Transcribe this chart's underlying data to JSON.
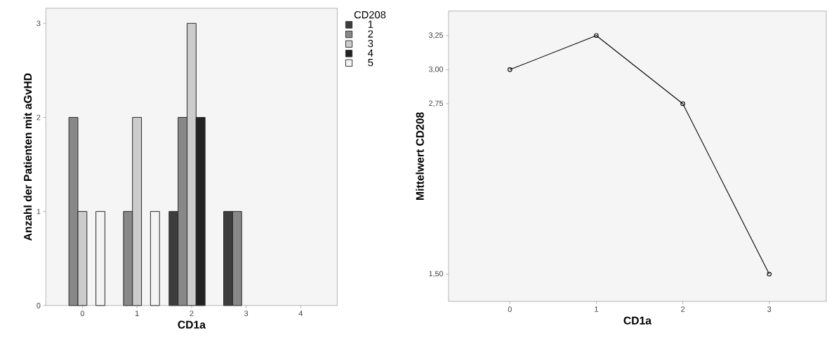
{
  "chart_data": [
    {
      "type": "bar",
      "xlabel": "CD1a",
      "ylabel": "Anzahl der Patienten mit aGvHD",
      "legend_title": "CD208",
      "legend": "right",
      "categories": [
        "0",
        "1",
        "2",
        "3",
        "4"
      ],
      "series": [
        {
          "name": "1",
          "color": "#3d3d3d",
          "values": [
            null,
            null,
            1,
            1,
            null
          ]
        },
        {
          "name": "2",
          "color": "#888888",
          "values": [
            2,
            1,
            2,
            1,
            null
          ]
        },
        {
          "name": "3",
          "color": "#cccccc",
          "values": [
            1,
            2,
            3,
            null,
            null
          ]
        },
        {
          "name": "4",
          "color": "#222222",
          "values": [
            null,
            null,
            2,
            null,
            null
          ]
        },
        {
          "name": "5",
          "color": "#f4f4f4",
          "values": [
            1,
            1,
            null,
            null,
            null
          ]
        }
      ],
      "ylim": [
        0,
        3.16
      ],
      "yticks": [
        0,
        1,
        2,
        3
      ]
    },
    {
      "type": "line",
      "xlabel": "CD1a",
      "ylabel": "Mittelwert CD208",
      "categories": [
        "0",
        "1",
        "2",
        "3"
      ],
      "values": [
        3.0,
        3.25,
        2.75,
        1.5
      ],
      "color": "#000000",
      "marker": "circle",
      "line_style": "solid",
      "ylim": [
        1.3,
        3.43
      ],
      "yticks": [
        {
          "value": 1.5,
          "label": "1,50"
        },
        {
          "value": 2.75,
          "label": "2,75"
        },
        {
          "value": 3.0,
          "label": "3,00"
        },
        {
          "value": 3.25,
          "label": "3,25"
        }
      ]
    }
  ]
}
